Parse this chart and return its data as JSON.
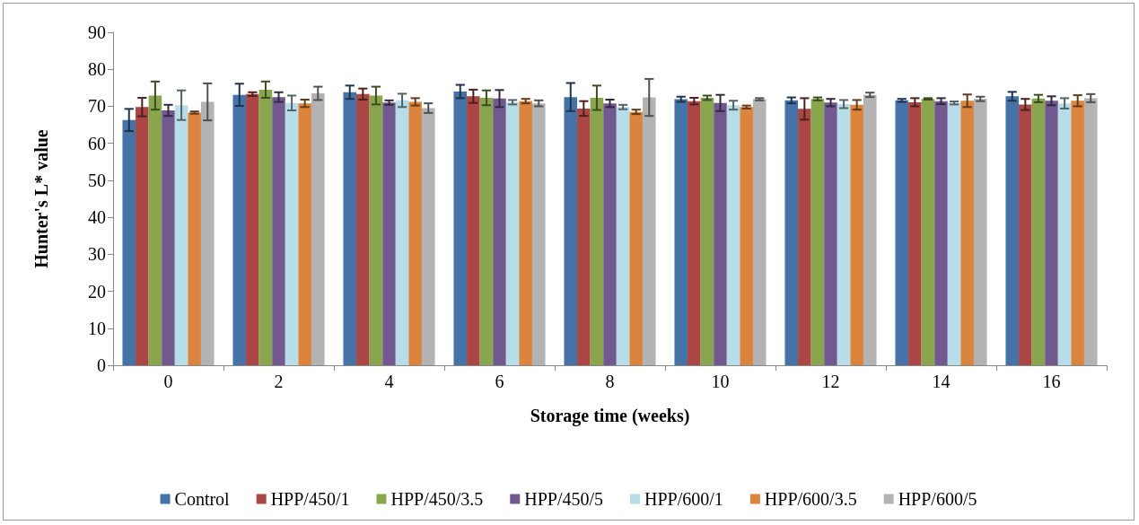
{
  "chart_data": {
    "type": "bar",
    "xlabel": "Storage time (weeks)",
    "ylabel": "Hunter's L* value",
    "categories": [
      "0",
      "2",
      "4",
      "6",
      "8",
      "10",
      "12",
      "14",
      "16"
    ],
    "ylim": [
      0,
      90
    ],
    "yticks": [
      0,
      10,
      20,
      30,
      40,
      50,
      60,
      70,
      80,
      90
    ],
    "grid": false,
    "legend": "bottom",
    "series": [
      {
        "name": "Control",
        "color": "#4572a7",
        "values": [
          66.3,
          73.1,
          73.8,
          74.0,
          72.5,
          71.9,
          71.6,
          71.6,
          72.7
        ],
        "errors": [
          3,
          3,
          1.8,
          1.8,
          3.8,
          0.7,
          0.8,
          0.4,
          1.2
        ]
      },
      {
        "name": "HPP/450/1",
        "color": "#aa4643",
        "values": [
          69.8,
          73.3,
          73.3,
          72.7,
          69.4,
          71.4,
          69.3,
          71.1,
          70.5
        ],
        "errors": [
          2.5,
          0.5,
          1.5,
          1.8,
          2,
          0.9,
          2.9,
          1.1,
          1.5
        ]
      },
      {
        "name": "HPP/450/3.5",
        "color": "#89a54e",
        "values": [
          72.9,
          74.5,
          72.9,
          72.3,
          72.3,
          72.3,
          72.0,
          72.0,
          72.1
        ],
        "errors": [
          3.8,
          2.2,
          2.4,
          2,
          3.3,
          0.6,
          0.4,
          0.2,
          1
        ]
      },
      {
        "name": "HPP/450/5",
        "color": "#71588f",
        "values": [
          68.9,
          72.5,
          71.0,
          72.1,
          70.8,
          70.9,
          71.0,
          71.4,
          71.5
        ],
        "errors": [
          1.5,
          1.3,
          0.6,
          2.3,
          1,
          2.2,
          1,
          0.8,
          1.2
        ]
      },
      {
        "name": "HPP/600/1",
        "color": "#b7dee8",
        "values": [
          70.3,
          70.9,
          71.6,
          71.1,
          69.8,
          70.3,
          70.6,
          70.9,
          70.8
        ],
        "errors": [
          4,
          2,
          1.8,
          0.6,
          0.6,
          1.2,
          1.1,
          0.4,
          1.4
        ]
      },
      {
        "name": "HPP/600/3.5",
        "color": "#db843d",
        "values": [
          68.3,
          70.8,
          71.2,
          71.4,
          68.5,
          69.8,
          70.4,
          71.5,
          71.5
        ],
        "errors": [
          0.3,
          1,
          1,
          0.6,
          0.6,
          0.4,
          1.3,
          1.7,
          1.5
        ]
      },
      {
        "name": "HPP/600/5",
        "color": "#b3b3b3",
        "values": [
          71.2,
          73.5,
          69.5,
          70.8,
          72.4,
          71.9,
          73.1,
          72.0,
          72.2
        ],
        "errors": [
          5,
          1.8,
          1.3,
          0.8,
          5,
          0.3,
          0.6,
          0.6,
          1.1
        ]
      }
    ]
  }
}
